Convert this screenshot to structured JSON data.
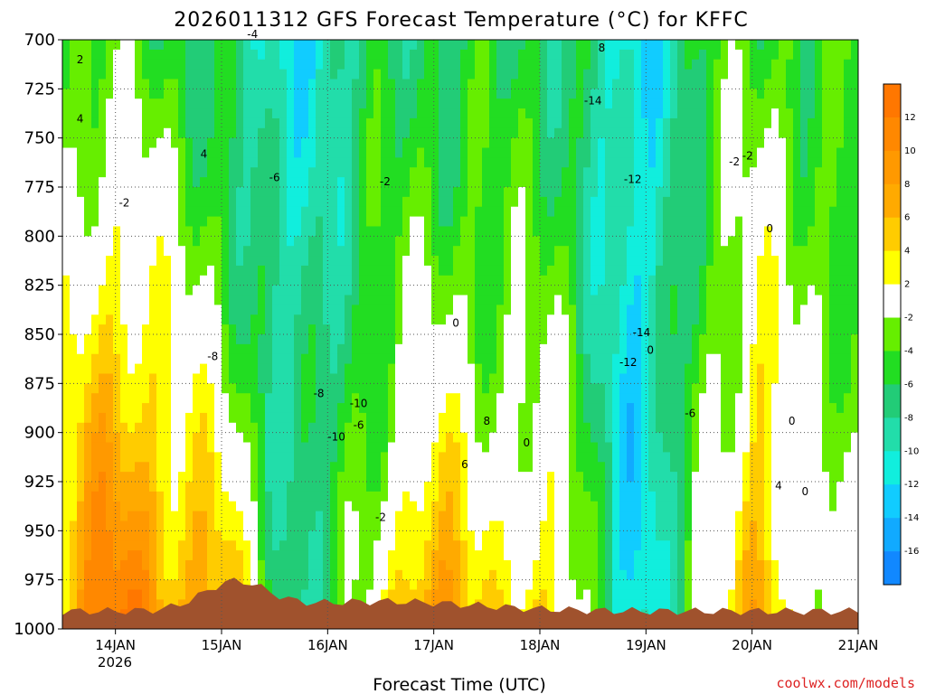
{
  "chart_data": {
    "type": "heatmap",
    "subtype": "time-height filled contour",
    "title": "2026011312 GFS Forecast Temperature (°C) for KFFC",
    "xlabel": "Forecast Time (UTC)",
    "ylabel": "",
    "credit": "coolwx.com/models",
    "x_tick_labels": [
      "14JAN",
      "15JAN",
      "16JAN",
      "17JAN",
      "18JAN",
      "19JAN",
      "20JAN",
      "21JAN"
    ],
    "x_sub_label": "2026",
    "x_range_hours": [
      -12,
      168
    ],
    "y_levels": [
      700,
      725,
      750,
      775,
      800,
      825,
      850,
      875,
      900,
      925,
      950,
      975,
      1000
    ],
    "y_tick_labels": [
      "700",
      "725",
      "750",
      "775",
      "800",
      "825",
      "850",
      "875",
      "900",
      "925",
      "950",
      "975",
      "1000"
    ],
    "colorbar": {
      "ticks": [
        "12",
        "10",
        "8",
        "6",
        "4",
        "2",
        "-2",
        "-4",
        "-6",
        "-8",
        "-10",
        "-12",
        "-14",
        "-16"
      ],
      "bins": [
        {
          "lo": 12,
          "hi": 14,
          "color": "#ff7700"
        },
        {
          "lo": 10,
          "hi": 12,
          "color": "#ff8800"
        },
        {
          "lo": 8,
          "hi": 10,
          "color": "#ff9900"
        },
        {
          "lo": 6,
          "hi": 8,
          "color": "#ffaa00"
        },
        {
          "lo": 4,
          "hi": 6,
          "color": "#ffcc00"
        },
        {
          "lo": 2,
          "hi": 4,
          "color": "#ffff00"
        },
        {
          "lo": -2,
          "hi": 2,
          "color": "#ffffff"
        },
        {
          "lo": -4,
          "hi": -2,
          "color": "#66ee00"
        },
        {
          "lo": -6,
          "hi": -4,
          "color": "#22dd22"
        },
        {
          "lo": -8,
          "hi": -6,
          "color": "#22cc77"
        },
        {
          "lo": -10,
          "hi": -8,
          "color": "#22ddaa"
        },
        {
          "lo": -12,
          "hi": -10,
          "color": "#11eedd"
        },
        {
          "lo": -14,
          "hi": -12,
          "color": "#11ccff"
        },
        {
          "lo": -16,
          "hi": -14,
          "color": "#11aaff"
        },
        {
          "lo": -18,
          "hi": -16,
          "color": "#1188ff"
        }
      ]
    },
    "grid": true,
    "terrain_color": "#a0522d",
    "zero_line_color": "#bb0077",
    "contour_label_values": [
      "2",
      "4",
      "-2",
      "-4",
      "-6",
      "-8",
      "-10",
      "-12",
      "-14",
      "0",
      "6",
      "8"
    ]
  }
}
